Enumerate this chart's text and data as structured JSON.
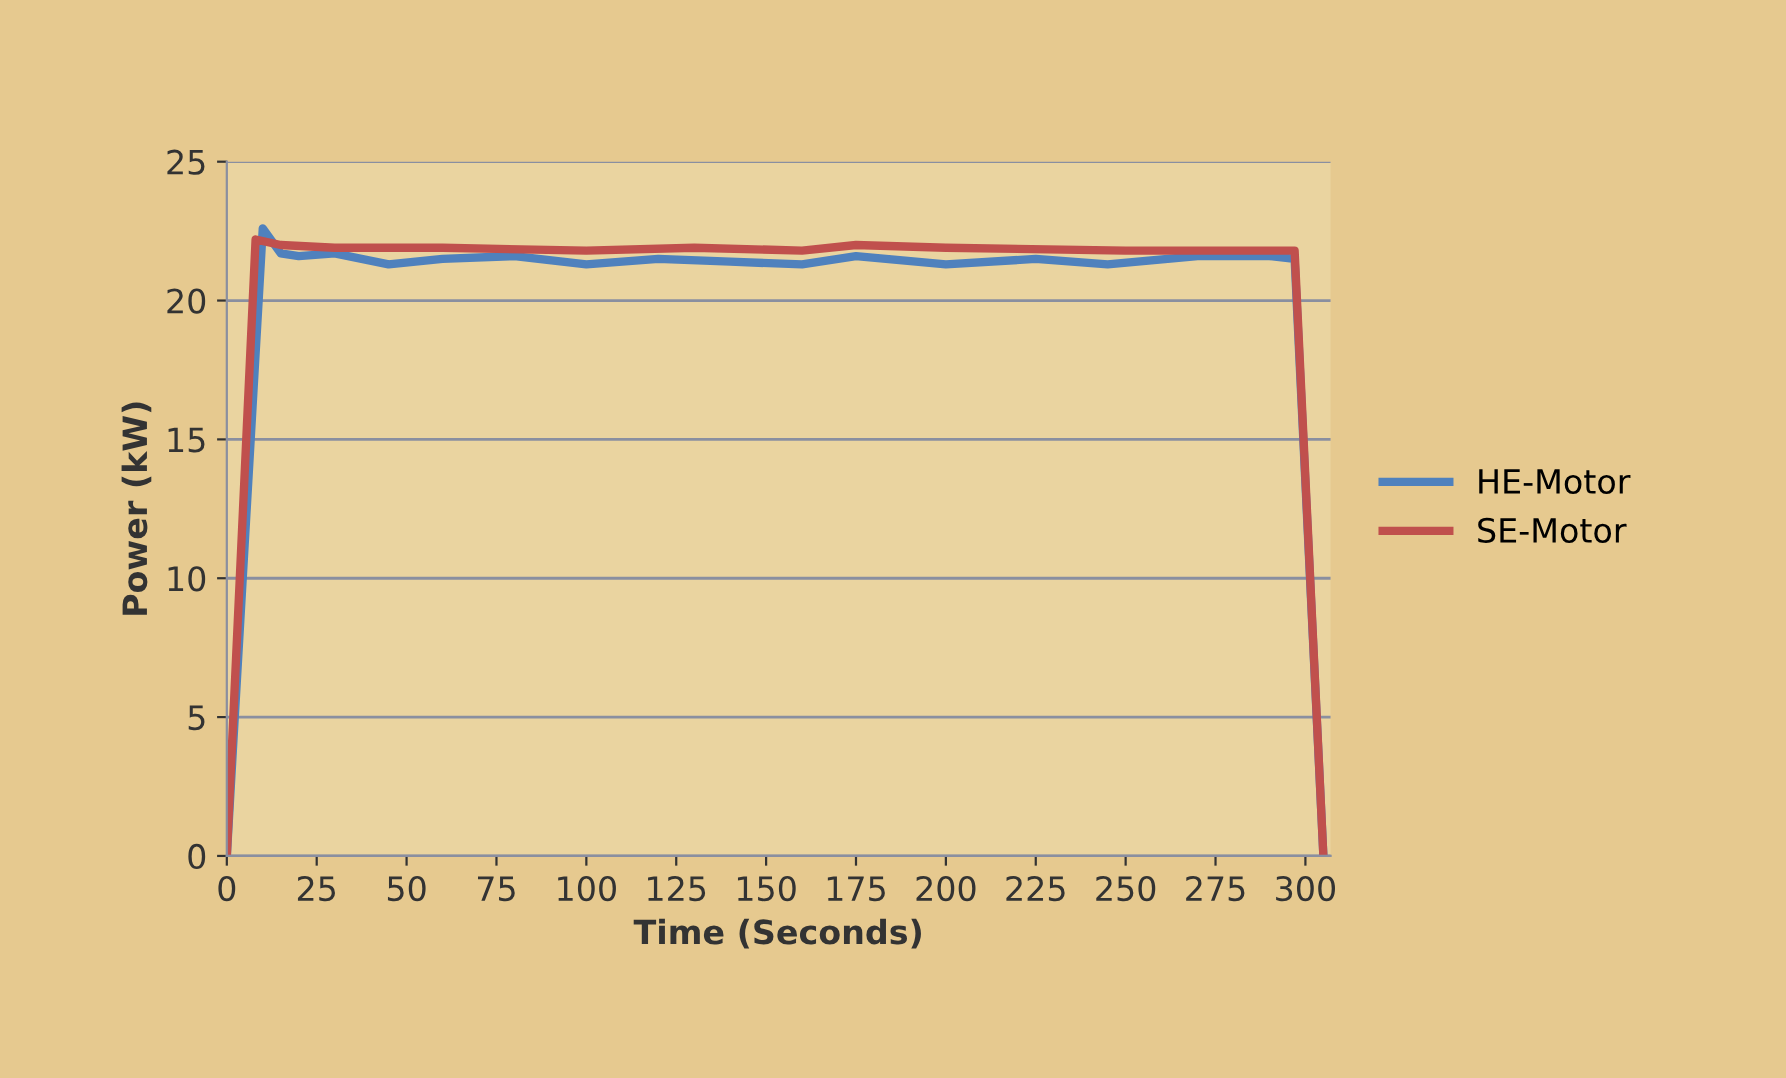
{
  "chart_data": {
    "type": "line",
    "xlabel": "Time (Seconds)",
    "ylabel": "Power (kW)",
    "xlim": [
      0,
      307
    ],
    "xticks": [
      0,
      25,
      50,
      75,
      100,
      125,
      150,
      175,
      200,
      225,
      250,
      275,
      300
    ],
    "ylim": [
      0,
      25
    ],
    "yticks": [
      0,
      5,
      10,
      15,
      20,
      25
    ],
    "grid": "y",
    "legend": "right",
    "marker": "none",
    "line_style": "solid",
    "series": [
      {
        "name": "HE-Motor",
        "color": "#4f81bd",
        "x": [
          0,
          10,
          15,
          20,
          30,
          45,
          60,
          80,
          100,
          120,
          140,
          160,
          175,
          200,
          225,
          245,
          270,
          290,
          297,
          305
        ],
        "values": [
          0,
          22.6,
          21.7,
          21.6,
          21.7,
          21.3,
          21.5,
          21.6,
          21.3,
          21.5,
          21.4,
          21.3,
          21.6,
          21.3,
          21.5,
          21.3,
          21.6,
          21.6,
          21.5,
          0
        ]
      },
      {
        "name": "SE-Motor",
        "color": "#c0504d",
        "x": [
          0,
          8,
          15,
          30,
          60,
          100,
          130,
          160,
          175,
          200,
          250,
          280,
          297,
          305
        ],
        "values": [
          0,
          22.2,
          22.0,
          21.9,
          21.9,
          21.8,
          21.9,
          21.8,
          22.0,
          21.9,
          21.8,
          21.8,
          21.8,
          0
        ]
      }
    ]
  }
}
